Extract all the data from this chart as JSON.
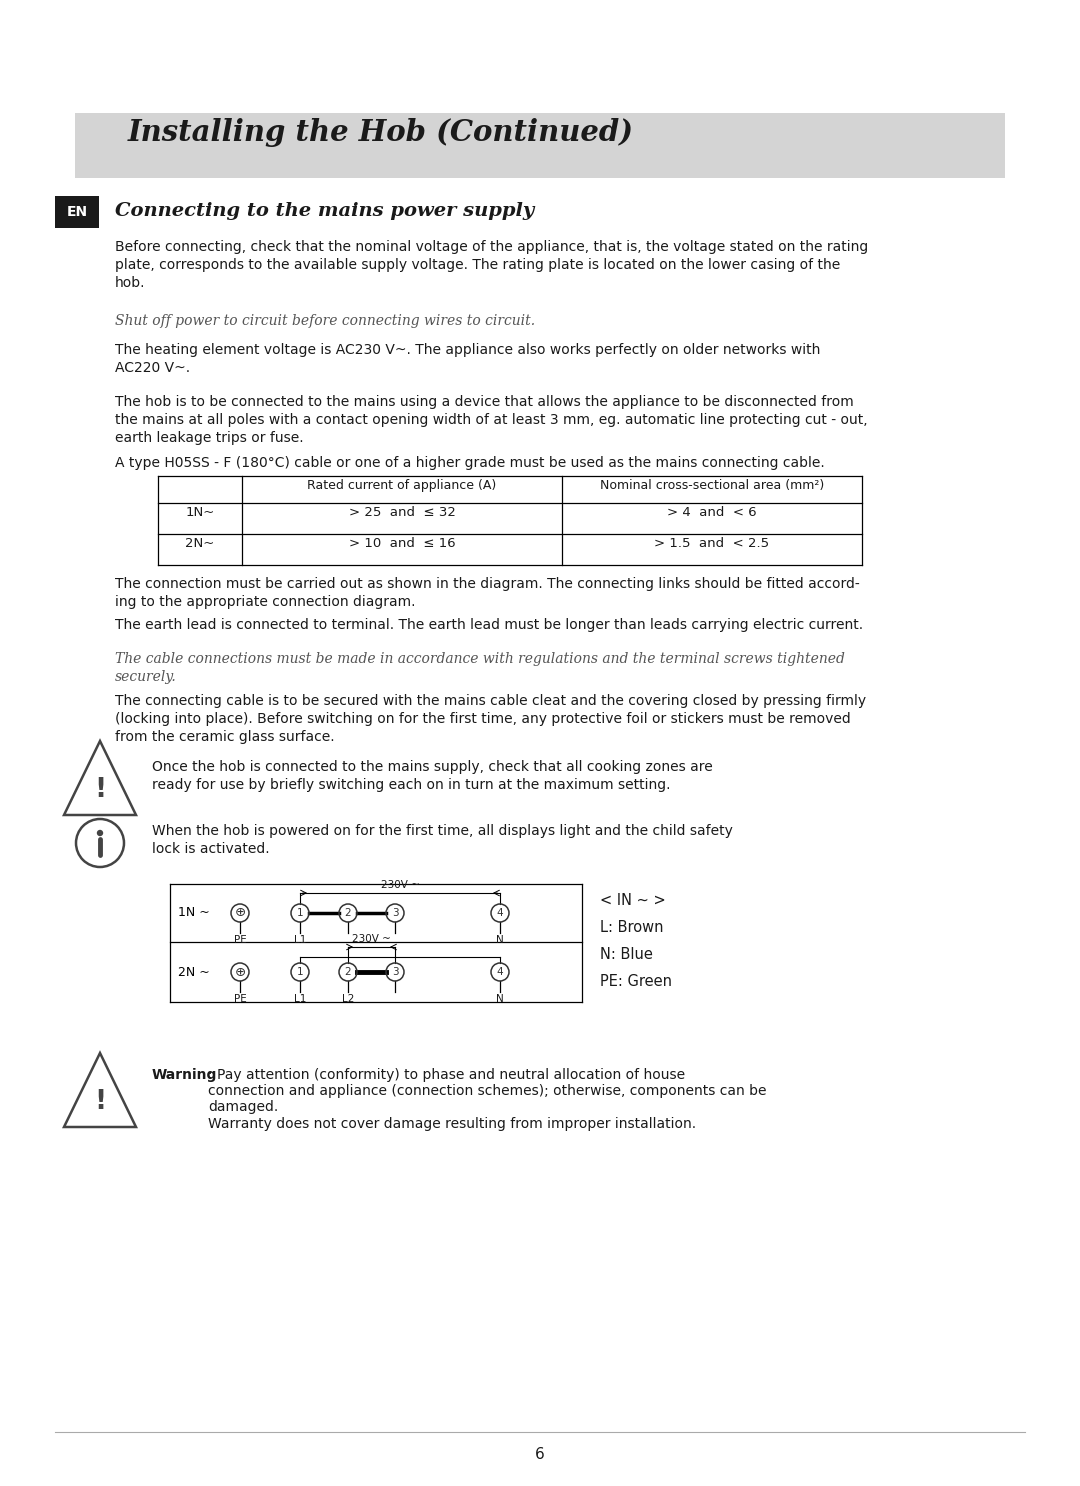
{
  "bg_color": "#ffffff",
  "header_bg": "#d4d4d4",
  "header_text": "Installing the Hob (Continued)",
  "en_label": "EN",
  "section_title": "Connecting to the mains power supply",
  "para1": "Before connecting, check that the nominal voltage of the appliance, that is, the voltage stated on the rating\nplate, corresponds to the available supply voltage. The rating plate is located on the lower casing of the\nhob.",
  "italic1": "Shut off power to circuit before connecting wires to circuit.",
  "para2": "The heating element voltage is AC230 V~. The appliance also works perfectly on older networks with\nAC220 V~.",
  "para3": "The hob is to be connected to the mains using a device that allows the appliance to be disconnected from\nthe mains at all poles with a contact opening width of at least 3 mm, eg. automatic line protecting cut - out,\nearth leakage trips or fuse.",
  "para4": "A type H05SS - F (180°C) cable or one of a higher grade must be used as the mains connecting cable.",
  "table_col2_header": "Rated current of appliance (A)",
  "table_col3_header": "Nominal cross-sectional area (mm²)",
  "table_row1_col1": "1N~",
  "table_row1_col2": "> 25  and  ≤ 32",
  "table_row1_col3": "> 4  and  < 6",
  "table_row2_col1": "2N~",
  "table_row2_col2": "> 10  and  ≤ 16",
  "table_row2_col3": "> 1.5  and  < 2.5",
  "para5": "The connection must be carried out as shown in the diagram. The connecting links should be fitted accord-\ning to the appropriate connection diagram.",
  "para6": "The earth lead is connected to terminal. The earth lead must be longer than leads carrying electric current.",
  "italic2": "The cable connections must be made in accordance with regulations and the terminal screws tightened\nsecurely.",
  "para7": "The connecting cable is to be secured with the mains cable cleat and the covering closed by pressing firmly\n(locking into place). Before switching on for the first time, any protective foil or stickers must be removed\nfrom the ceramic glass surface.",
  "warning1_text": "Once the hob is connected to the mains supply, check that all cooking zones are\nready for use by briefly switching each on in turn at the maximum setting.",
  "info1_text": "When the hob is powered on for the first time, all displays light and the child safety\nlock is activated.",
  "legend_text": "< IN ~ >\nL: Brown\nN: Blue\nPE: Green",
  "warning2_bold": "Warning",
  "warning2_rest": ": Pay attention (conformity) to phase and neutral allocation of house\nconnection and appliance (connection schemes); otherwise, components can be\ndamaged.\nWarranty does not cover damage resulting from improper installation.",
  "page_num": "6"
}
